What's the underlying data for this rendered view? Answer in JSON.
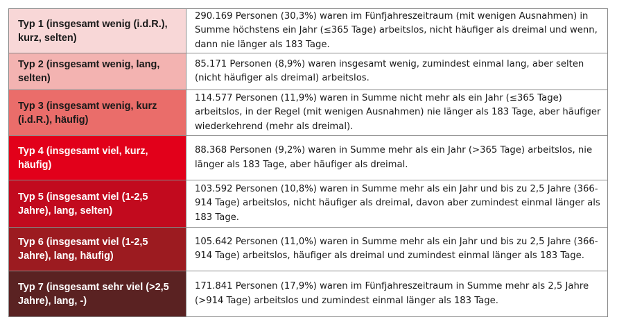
{
  "rows": [
    {
      "type": "Typ 1 (insgesamt wenig (i.d.R.), kurz, selten)",
      "description": "290.169 Personen (30,3%) waren im Fünfjahreszeitraum (mit wenigen Ausnahmen) in Summe höchstens ein Jahr (≤365 Tage) arbeitslos, nicht häufiger als dreimal und wenn, dann nie länger als 183 Tage.",
      "color": "#f8d7d7",
      "text_color": "#1a1a1a"
    },
    {
      "type": "Typ 2 (insgesamt wenig, lang, selten)",
      "description": "85.171 Personen (8,9%) waren insgesamt wenig, zumindest einmal lang, aber selten (nicht häufiger als dreimal) arbeitslos.",
      "color": "#f3b3b1",
      "text_color": "#1a1a1a"
    },
    {
      "type": "Typ 3 (insgesamt wenig, kurz (i.d.R.), häufig)",
      "description": "114.577 Personen (11,9%) waren in Summe nicht mehr als ein Jahr (≤365 Tage) arbeitslos, in der Regel (mit wenigen Ausnahmen) nie länger als 183 Tage, aber häufiger wiederkehrend (mehr als dreimal).",
      "color": "#ea6d6a",
      "text_color": "#1a1a1a"
    },
    {
      "type": "Typ 4 (insgesamt viel, kurz, häufig)",
      "description": "88.368 Personen (9,2%) waren in Summe mehr als ein Jahr (>365 Tage) arbeitslos, nie länger als 183 Tage, aber häufiger als dreimal.",
      "color": "#e2001a",
      "text_color": "#ffffff"
    },
    {
      "type": "Typ 5 (insgesamt viel (1-2,5 Jahre), lang, selten)",
      "description": "103.592 Personen (10,8%) waren in Summe mehr als ein Jahr und bis zu 2,5 Jahre (366-914 Tage) arbeitslos, nicht häufiger als dreimal, davon aber zumindest einmal länger als 183 Tage.",
      "color": "#c20a1e",
      "text_color": "#ffffff"
    },
    {
      "type": "Typ 6 (insgesamt viel (1-2,5 Jahre), lang, häufig)",
      "description": "105.642 Personen (11,0%) waren in Summe mehr als ein Jahr und bis zu 2,5 Jahre (366-914 Tage) arbeitslos, häufiger als dreimal und zumindest einmal länger als 183 Tage.",
      "color": "#9c1b20",
      "text_color": "#ffffff"
    },
    {
      "type": "Typ 7 (insgesamt sehr viel (>2,5 Jahre), lang, -)",
      "description": "171.841 Personen (17,9%) waren im Fünfjahreszeitraum in Summe mehr als 2,5 Jahre (>914 Tage) arbeitslos und zumindest einmal länger als 183 Tage.",
      "color": "#5a2222",
      "text_color": "#ffffff"
    }
  ]
}
